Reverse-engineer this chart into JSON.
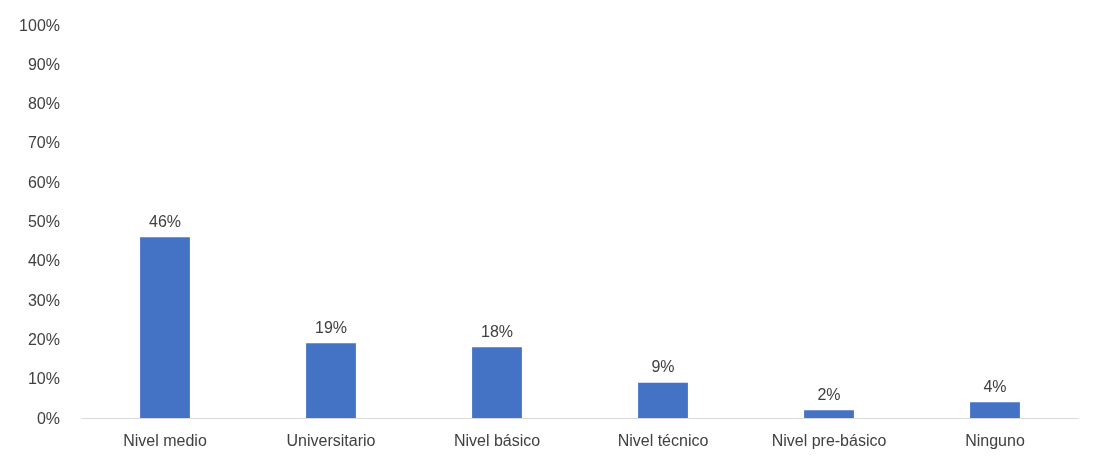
{
  "chart_data": {
    "type": "bar",
    "categories": [
      "Nivel medio",
      "Universitario",
      "Nivel básico",
      "Nivel técnico",
      "Nivel pre-básico",
      "Ninguno"
    ],
    "values": [
      46,
      19,
      18,
      9,
      2,
      4
    ],
    "value_labels": [
      "46%",
      "19%",
      "18%",
      "9%",
      "2%",
      "4%"
    ],
    "color": "#4472c4",
    "ylim": [
      0,
      100
    ],
    "yticks": [
      {
        "value": 0,
        "label": "0%"
      },
      {
        "value": 10,
        "label": "10%"
      },
      {
        "value": 20,
        "label": "20%"
      },
      {
        "value": 30,
        "label": "30%"
      },
      {
        "value": 40,
        "label": "40%"
      },
      {
        "value": 50,
        "label": "50%"
      },
      {
        "value": 60,
        "label": "60%"
      },
      {
        "value": 70,
        "label": "70%"
      },
      {
        "value": 80,
        "label": "80%"
      },
      {
        "value": 90,
        "label": "90%"
      },
      {
        "value": 100,
        "label": "100%"
      }
    ]
  }
}
